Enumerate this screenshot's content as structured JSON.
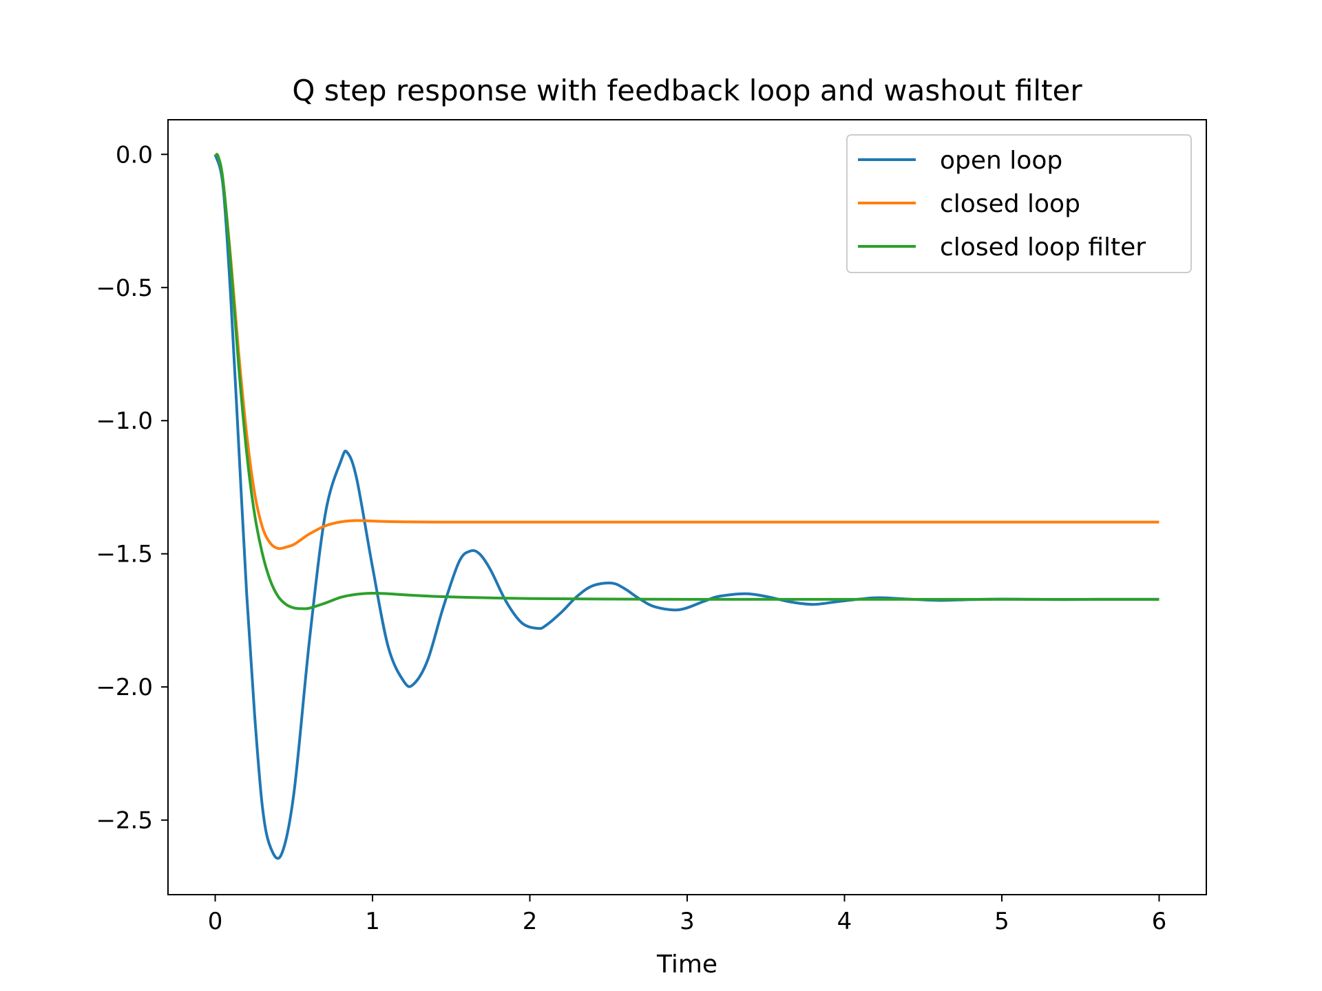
{
  "chart_data": {
    "type": "line",
    "title": "Q step response with feedback loop and washout filter",
    "xlabel": "Time",
    "ylabel": "",
    "xlim": [
      -0.3,
      6.3
    ],
    "ylim": [
      -2.78,
      0.13
    ],
    "xticks": [
      0,
      1,
      2,
      3,
      4,
      5,
      6
    ],
    "xtick_labels": [
      "0",
      "1",
      "2",
      "3",
      "4",
      "5",
      "6"
    ],
    "yticks": [
      0.0,
      -0.5,
      -1.0,
      -1.5,
      -2.0,
      -2.5
    ],
    "ytick_labels": [
      "0.0",
      "−0.5",
      "−1.0",
      "−1.5",
      "−2.0",
      "−2.5"
    ],
    "grid": false,
    "legend_position": "top-right",
    "series": [
      {
        "name": "open loop",
        "color": "#1f77b4",
        "x": [
          0,
          0.05,
          0.1,
          0.15,
          0.2,
          0.25,
          0.3,
          0.35,
          0.42,
          0.5,
          0.6,
          0.7,
          0.8,
          0.84,
          0.9,
          1.0,
          1.1,
          1.2,
          1.26,
          1.35,
          1.45,
          1.55,
          1.62,
          1.68,
          1.75,
          1.85,
          1.95,
          2.05,
          2.1,
          2.2,
          2.3,
          2.4,
          2.52,
          2.6,
          2.7,
          2.8,
          2.95,
          3.1,
          3.2,
          3.37,
          3.5,
          3.65,
          3.8,
          3.95,
          4.1,
          4.22,
          4.4,
          4.6,
          4.8,
          5.0,
          5.2,
          5.4,
          5.6,
          5.8,
          6.0
        ],
        "y": [
          0.0,
          -0.12,
          -0.55,
          -1.1,
          -1.65,
          -2.1,
          -2.45,
          -2.6,
          -2.63,
          -2.4,
          -1.82,
          -1.35,
          -1.15,
          -1.12,
          -1.22,
          -1.55,
          -1.85,
          -1.98,
          -1.99,
          -1.9,
          -1.7,
          -1.53,
          -1.49,
          -1.5,
          -1.56,
          -1.68,
          -1.76,
          -1.78,
          -1.77,
          -1.72,
          -1.66,
          -1.62,
          -1.61,
          -1.63,
          -1.67,
          -1.7,
          -1.71,
          -1.68,
          -1.66,
          -1.65,
          -1.66,
          -1.68,
          -1.69,
          -1.68,
          -1.67,
          -1.665,
          -1.67,
          -1.675,
          -1.672,
          -1.67,
          -1.671,
          -1.672,
          -1.671,
          -1.671,
          -1.671
        ]
      },
      {
        "name": "closed loop",
        "color": "#ff7f0e",
        "x": [
          0,
          0.02,
          0.05,
          0.1,
          0.15,
          0.2,
          0.25,
          0.3,
          0.35,
          0.4,
          0.45,
          0.5,
          0.55,
          0.6,
          0.7,
          0.8,
          0.9,
          1.0,
          1.1,
          1.2,
          1.4,
          1.7,
          2.0,
          3.0,
          4.0,
          5.0,
          6.0
        ],
        "y": [
          0.0,
          -0.01,
          -0.1,
          -0.4,
          -0.75,
          -1.05,
          -1.27,
          -1.4,
          -1.46,
          -1.48,
          -1.475,
          -1.465,
          -1.445,
          -1.425,
          -1.395,
          -1.38,
          -1.375,
          -1.377,
          -1.379,
          -1.38,
          -1.381,
          -1.381,
          -1.381,
          -1.381,
          -1.381,
          -1.381,
          -1.381
        ]
      },
      {
        "name": "closed loop filter",
        "color": "#2ca02c",
        "x": [
          0,
          0.02,
          0.05,
          0.1,
          0.15,
          0.2,
          0.25,
          0.3,
          0.35,
          0.4,
          0.45,
          0.5,
          0.55,
          0.6,
          0.7,
          0.8,
          0.9,
          1.0,
          1.1,
          1.2,
          1.4,
          1.7,
          2.0,
          2.5,
          3.0,
          4.0,
          5.0,
          6.0
        ],
        "y": [
          0.0,
          -0.01,
          -0.1,
          -0.42,
          -0.8,
          -1.12,
          -1.35,
          -1.5,
          -1.6,
          -1.66,
          -1.69,
          -1.703,
          -1.706,
          -1.704,
          -1.685,
          -1.663,
          -1.652,
          -1.648,
          -1.65,
          -1.654,
          -1.66,
          -1.665,
          -1.668,
          -1.67,
          -1.671,
          -1.671,
          -1.671,
          -1.671
        ]
      }
    ]
  }
}
